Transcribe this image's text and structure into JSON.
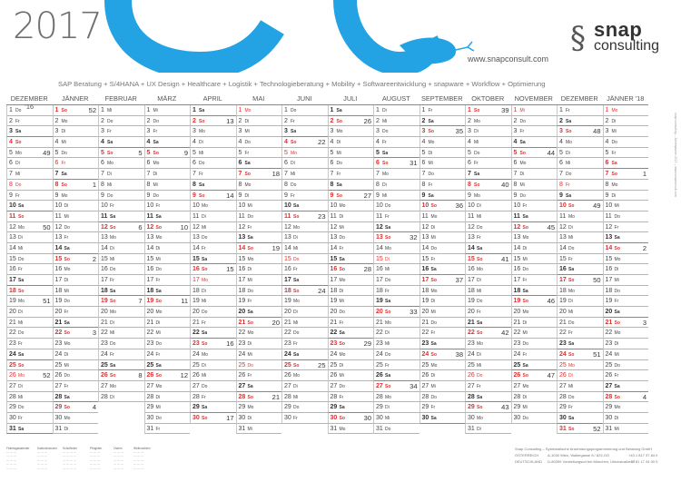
{
  "header": {
    "year": "2017",
    "website": "www.snapconsult.com",
    "tagline": "SAP Beratung + S/4HANA + UX Design + Healthcare + Logistik + Technologieberatung + Mobility + Softwareentwicklung + snapware + Workflow + Optimierung",
    "logo_top": "snap",
    "logo_bottom": "consulting"
  },
  "colors": {
    "snake": "#23a3e3",
    "holiday": "#e03030",
    "text": "#444444"
  },
  "weekday_abbr": [
    "Mo",
    "Di",
    "Mi",
    "Do",
    "Fr",
    "Sa",
    "So"
  ],
  "months": [
    {
      "label": "DEZEMBER '16",
      "days": 31,
      "first_weekday": 3
    },
    {
      "label": "JÄNNER",
      "days": 31,
      "first_weekday": 6
    },
    {
      "label": "FEBRUAR",
      "days": 28,
      "first_weekday": 2
    },
    {
      "label": "MÄRZ",
      "days": 31,
      "first_weekday": 2
    },
    {
      "label": "APRIL",
      "days": 30,
      "first_weekday": 5
    },
    {
      "label": "MAI",
      "days": 31,
      "first_weekday": 0
    },
    {
      "label": "JUNI",
      "days": 30,
      "first_weekday": 3
    },
    {
      "label": "JULI",
      "days": 31,
      "first_weekday": 5
    },
    {
      "label": "AUGUST",
      "days": 31,
      "first_weekday": 1
    },
    {
      "label": "SEPTEMBER",
      "days": 30,
      "first_weekday": 4
    },
    {
      "label": "OKTOBER",
      "days": 31,
      "first_weekday": 6
    },
    {
      "label": "NOVEMBER",
      "days": 30,
      "first_weekday": 2
    },
    {
      "label": "DEZEMBER",
      "days": 31,
      "first_weekday": 4
    },
    {
      "label": "JÄNNER '18",
      "days": 31,
      "first_weekday": 0
    }
  ],
  "holidays": [
    [
      8,
      25,
      26
    ],
    [
      1,
      6
    ],
    [],
    [],
    [
      16,
      17
    ],
    [
      1,
      25
    ],
    [
      4,
      5,
      15
    ],
    [],
    [
      15
    ],
    [],
    [
      26
    ],
    [
      1
    ],
    [
      8,
      25,
      26
    ],
    [
      1,
      6
    ]
  ],
  "week_numbers": [
    [
      [
        5,
        49
      ],
      [
        12,
        50
      ],
      [
        19,
        51
      ],
      [
        26,
        52
      ]
    ],
    [
      [
        1,
        52
      ],
      [
        8,
        1
      ],
      [
        15,
        2
      ],
      [
        22,
        3
      ],
      [
        29,
        4
      ]
    ],
    [
      [
        5,
        5
      ],
      [
        12,
        6
      ],
      [
        19,
        7
      ],
      [
        26,
        8
      ]
    ],
    [
      [
        5,
        9
      ],
      [
        12,
        10
      ],
      [
        19,
        11
      ],
      [
        26,
        12
      ]
    ],
    [
      [
        2,
        13
      ],
      [
        9,
        14
      ],
      [
        16,
        15
      ],
      [
        23,
        16
      ],
      [
        30,
        17
      ]
    ],
    [
      [
        7,
        18
      ],
      [
        14,
        19
      ],
      [
        21,
        20
      ],
      [
        28,
        21
      ]
    ],
    [
      [
        4,
        22
      ],
      [
        11,
        23
      ],
      [
        18,
        24
      ],
      [
        25,
        25
      ]
    ],
    [
      [
        2,
        26
      ],
      [
        9,
        27
      ],
      [
        16,
        28
      ],
      [
        23,
        29
      ],
      [
        30,
        30
      ]
    ],
    [
      [
        6,
        31
      ],
      [
        13,
        32
      ],
      [
        20,
        33
      ],
      [
        27,
        34
      ]
    ],
    [
      [
        3,
        35
      ],
      [
        10,
        36
      ],
      [
        17,
        37
      ],
      [
        24,
        38
      ]
    ],
    [
      [
        1,
        39
      ],
      [
        8,
        40
      ],
      [
        15,
        41
      ],
      [
        22,
        42
      ],
      [
        29,
        43
      ]
    ],
    [
      [
        5,
        44
      ],
      [
        12,
        45
      ],
      [
        19,
        46
      ],
      [
        26,
        47
      ]
    ],
    [
      [
        3,
        48
      ],
      [
        10,
        49
      ],
      [
        17,
        50
      ],
      [
        24,
        51
      ],
      [
        31,
        52
      ]
    ],
    [
      [
        7,
        1
      ],
      [
        14,
        2
      ],
      [
        21,
        3
      ],
      [
        28,
        4
      ]
    ]
  ],
  "footer": {
    "company": "Snap Consulting – Systematische Anwendungsprogrammierung und Beratung GmbH",
    "country_at": "ÖSTERREICH",
    "address_at": "A-1030 Wien, Wallergasse 8 / 822-GG",
    "country_de": "DEUTSCHLAND",
    "address_de": "D-80399 Vorstellungsort bei München, Ulrichstraße 17",
    "phone_at": "+43 1 817 37 84 0",
    "phone_de": "+49 81 17 44 00 0",
    "table_headers": [
      "Feiertagskalender",
      "Kalenderwoche",
      "Schulferien",
      "Pfingsten",
      "Ostern",
      "Weihnachten"
    ]
  },
  "sidebar_text": "snap consulting – Jahresplaner 2017 – www.snapconsult.com"
}
